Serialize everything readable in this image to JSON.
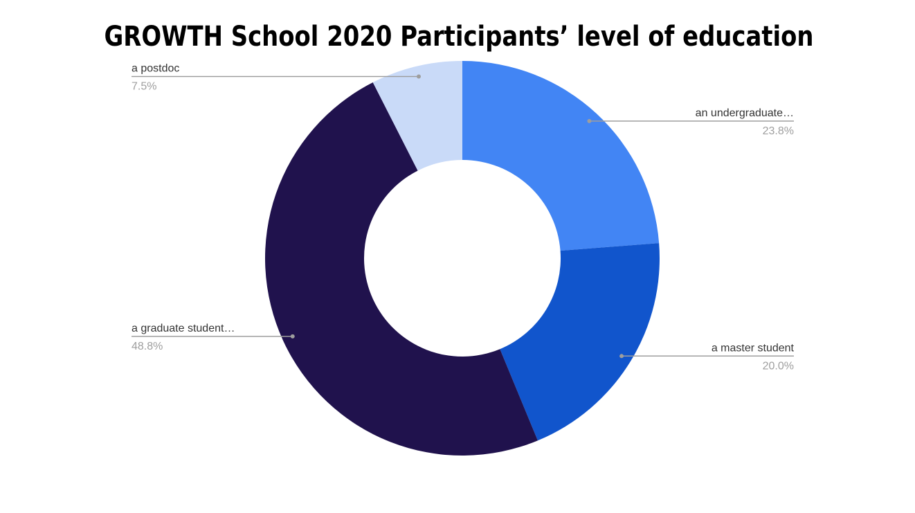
{
  "chart_data": {
    "type": "donut",
    "title": "GROWTH School 2020 Participants’ level of education",
    "categories": [
      "an undergraduate…",
      "a master student",
      "a graduate student…",
      "a postdoc"
    ],
    "values": [
      23.8,
      20.0,
      48.8,
      7.5
    ],
    "value_labels": [
      "23.8%",
      "20.0%",
      "48.8%",
      "7.5%"
    ],
    "colors": [
      "#4285f4",
      "#1155cc",
      "#20124d",
      "#c9daf8"
    ]
  }
}
